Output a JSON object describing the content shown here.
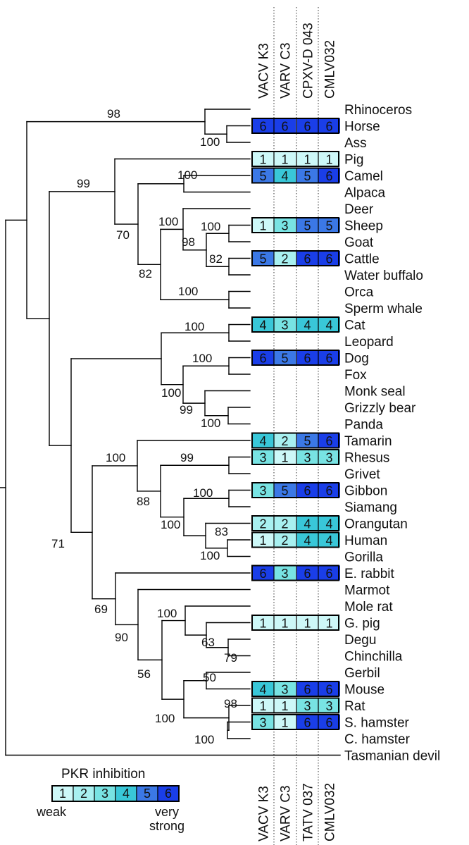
{
  "figure": {
    "columns_top": [
      "VACV K3",
      "VARV C3",
      "CPXV-D 043",
      "CMLV032"
    ],
    "columns_bottom": [
      "VACV K3",
      "VARV C3",
      "TATV 037",
      "CMLV032"
    ],
    "legend": {
      "title": "PKR inhibition",
      "levels": [
        "1",
        "2",
        "3",
        "4",
        "5",
        "6"
      ],
      "weak_label": "weak",
      "strong_label_1": "very",
      "strong_label_2": "strong"
    },
    "level_colors": [
      "#cdf8f8",
      "#a8f0f0",
      "#78e3e3",
      "#39c7d8",
      "#3b78e6",
      "#1a3ee8"
    ],
    "taxa": [
      {
        "name": "Rhinoceros",
        "scores": null
      },
      {
        "name": "Horse",
        "scores": [
          6,
          6,
          6,
          6
        ]
      },
      {
        "name": "Ass",
        "scores": null
      },
      {
        "name": "Pig",
        "scores": [
          1,
          1,
          1,
          1
        ]
      },
      {
        "name": "Camel",
        "scores": [
          5,
          4,
          5,
          6
        ]
      },
      {
        "name": "Alpaca",
        "scores": null
      },
      {
        "name": "Deer",
        "scores": null
      },
      {
        "name": "Sheep",
        "scores": [
          1,
          3,
          5,
          5
        ]
      },
      {
        "name": "Goat",
        "scores": null
      },
      {
        "name": "Cattle",
        "scores": [
          5,
          2,
          6,
          6
        ]
      },
      {
        "name": "Water buffalo",
        "scores": null
      },
      {
        "name": "Orca",
        "scores": null
      },
      {
        "name": "Sperm whale",
        "scores": null
      },
      {
        "name": "Cat",
        "scores": [
          4,
          3,
          4,
          4
        ]
      },
      {
        "name": "Leopard",
        "scores": null
      },
      {
        "name": "Dog",
        "scores": [
          6,
          5,
          6,
          6
        ]
      },
      {
        "name": "Fox",
        "scores": null
      },
      {
        "name": "Monk seal",
        "scores": null
      },
      {
        "name": "Grizzly bear",
        "scores": null
      },
      {
        "name": "Panda",
        "scores": null
      },
      {
        "name": "Tamarin",
        "scores": [
          4,
          2,
          5,
          6
        ]
      },
      {
        "name": "Rhesus",
        "scores": [
          3,
          1,
          3,
          3
        ]
      },
      {
        "name": "Grivet",
        "scores": null
      },
      {
        "name": "Gibbon",
        "scores": [
          3,
          5,
          6,
          6
        ]
      },
      {
        "name": "Siamang",
        "scores": null
      },
      {
        "name": "Orangutan",
        "scores": [
          2,
          2,
          4,
          4
        ]
      },
      {
        "name": "Human",
        "scores": [
          1,
          2,
          4,
          4
        ]
      },
      {
        "name": "Gorilla",
        "scores": null
      },
      {
        "name": "E. rabbit",
        "scores": [
          6,
          3,
          6,
          6
        ]
      },
      {
        "name": "Marmot",
        "scores": null
      },
      {
        "name": "Mole rat",
        "scores": null
      },
      {
        "name": "G. pig",
        "scores": [
          1,
          1,
          1,
          1
        ]
      },
      {
        "name": "Degu",
        "scores": null
      },
      {
        "name": "Chinchilla",
        "scores": null
      },
      {
        "name": "Gerbil",
        "scores": null
      },
      {
        "name": "Mouse",
        "scores": [
          4,
          3,
          6,
          6
        ]
      },
      {
        "name": "Rat",
        "scores": [
          1,
          1,
          3,
          3
        ]
      },
      {
        "name": "S. hamster",
        "scores": [
          3,
          1,
          6,
          6
        ]
      },
      {
        "name": "C. hamster",
        "scores": null
      },
      {
        "name": "Tasmanian devil",
        "scores": null
      }
    ],
    "bootstrap": [
      "98",
      "100",
      "99",
      "100",
      "70",
      "100",
      "100",
      "98",
      "82",
      "82",
      "100",
      "100",
      "100",
      "100",
      "99",
      "100",
      "100",
      "99",
      "100",
      "88",
      "100",
      "83",
      "100",
      "71",
      "69",
      "100",
      "90",
      "63",
      "79",
      "56",
      "50",
      "98",
      "100",
      "100"
    ]
  }
}
